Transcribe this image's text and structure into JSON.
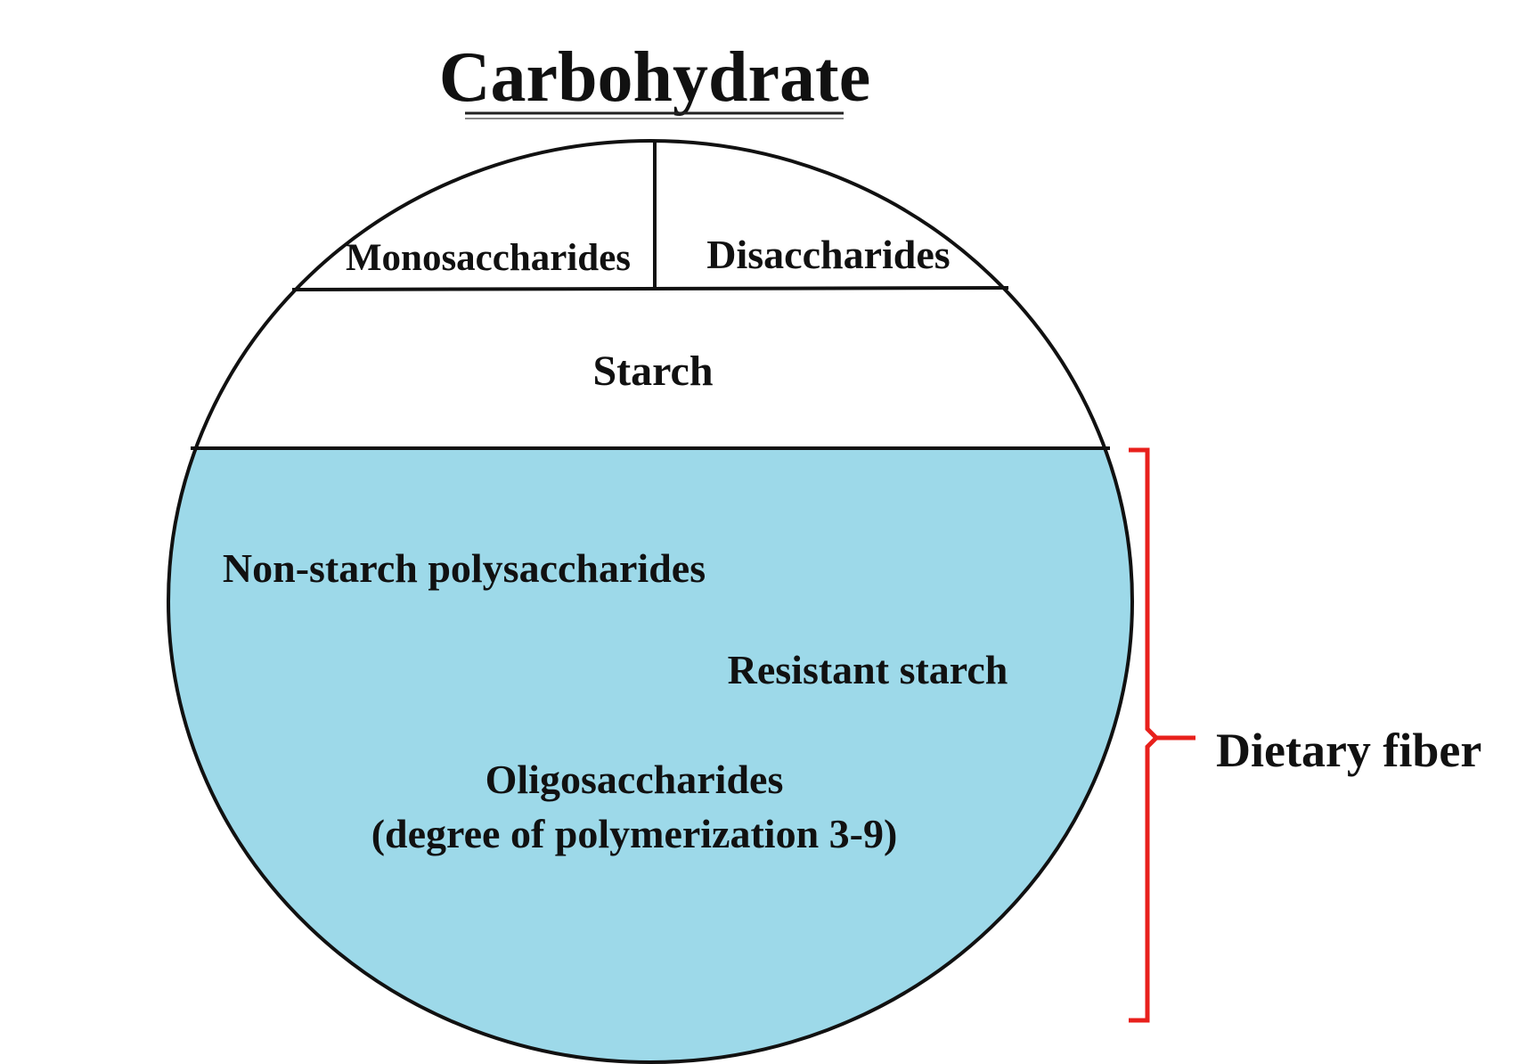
{
  "title": "Carbohydrate",
  "sections": {
    "monosaccharides": "Monosaccharides",
    "disaccharides": "Disaccharides",
    "starch": "Starch",
    "non_starch_polysaccharides": "Non-starch polysaccharides",
    "resistant_starch": "Resistant starch",
    "oligosaccharides": "Oligosaccharides",
    "oligosaccharides_note": "(degree of polymerization 3-9)"
  },
  "bracket_label": "Dietary fiber",
  "colors": {
    "fiber_fill": "#9dd9e9",
    "outline": "#111111",
    "bracket": "#e8201c"
  }
}
